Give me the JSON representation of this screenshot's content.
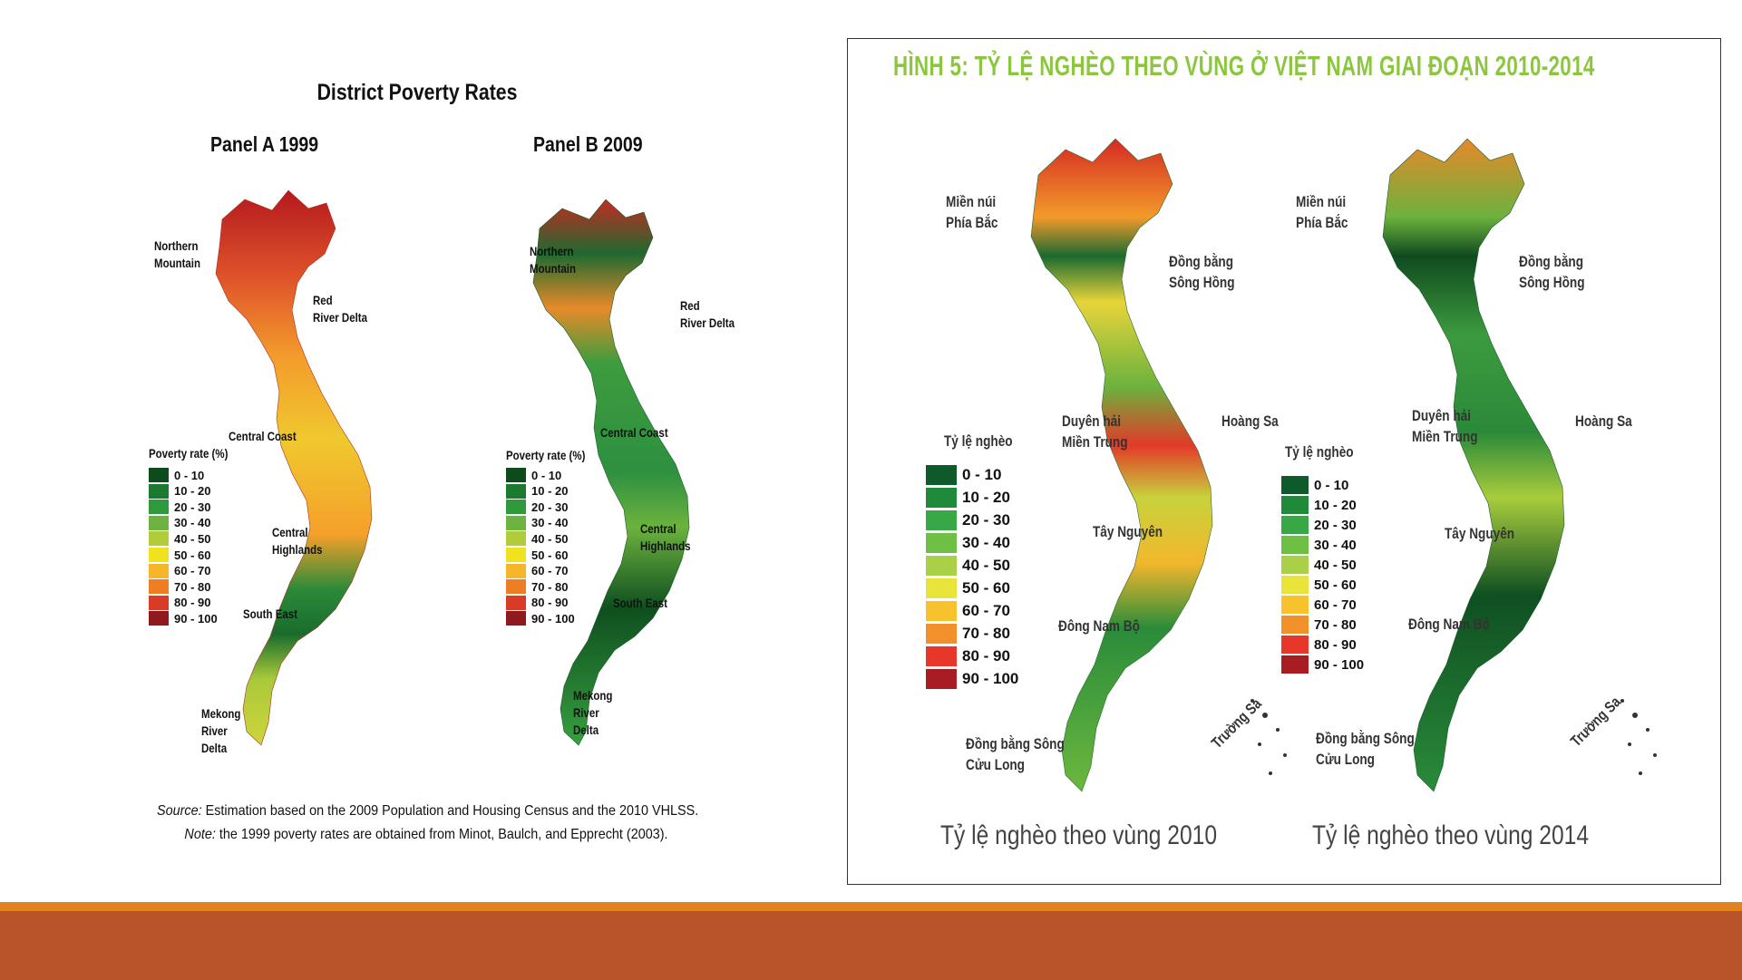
{
  "left_figure": {
    "title": "District Poverty Rates",
    "panel_a": {
      "title": "Panel A 1999",
      "labels": [
        "Northern\nMountain",
        "Red\nRiver Delta",
        "Central Coast",
        "Central\nHighlands",
        "South East",
        "Mekong\nRiver\nDelta"
      ]
    },
    "panel_b": {
      "title": "Panel B 2009",
      "labels": [
        "Northern\nMountain",
        "Red\nRiver Delta",
        "Central Coast",
        "Central\nHighlands",
        "South East",
        "Mekong\nRiver\nDelta"
      ]
    },
    "legend_title": "Poverty rate (%)",
    "legend": [
      "0 - 10",
      "10 - 20",
      "20 - 30",
      "30 - 40",
      "40 - 50",
      "50 - 60",
      "60 - 70",
      "70 - 80",
      "80 - 90",
      "90 - 100"
    ],
    "legend_colors": [
      "#0d4a1c",
      "#1a7a30",
      "#2e9a3c",
      "#6db33f",
      "#b0cc3a",
      "#f0e21e",
      "#f7b52a",
      "#ef7d24",
      "#d93b26",
      "#8f1a1e"
    ],
    "source_label": "Source:",
    "source_text": " Estimation based on the 2009 Population and Housing Census and the 2010 VHLSS.",
    "note_label": "Note:",
    "note_text": "  the 1999 poverty rates are obtained from Minot, Baulch, and Epprecht (2003)."
  },
  "right_figure": {
    "heading": "HÌNH 5: TỶ LỆ NGHÈO THEO VÙNG Ở VIỆT NAM GIAI ĐOẠN 2010-2014",
    "map_2010": {
      "labels": [
        "Miền núi\nPhía Bắc",
        "Đồng bằng\nSông Hồng",
        "Duyên hải\nMiền Trung",
        "Hoàng Sa",
        "Tây Nguyên",
        "Đông Nam Bộ",
        "Đồng bằng Sông\nCửu Long",
        "Trường Sa"
      ],
      "legend_title": "Tỷ lệ nghèo",
      "caption": "Tỷ lệ nghèo theo vùng 2010"
    },
    "map_2014": {
      "labels": [
        "Miền núi\nPhía Bắc",
        "Đồng bằng\nSông Hồng",
        "Duyên hải\nMiền Trung",
        "Hoàng Sa",
        "Tây Nguyên",
        "Đông Nam Bộ",
        "Đồng bằng Sông\nCửu Long",
        "Trường Sa"
      ],
      "legend_title": "Tỷ lệ nghèo",
      "caption": "Tỷ lệ nghèo theo vùng 2014"
    },
    "legend": [
      "0 - 10",
      "10 - 20",
      "20 - 30",
      "30 - 40",
      "40 - 50",
      "50 - 60",
      "60 - 70",
      "70 - 80",
      "80 - 90",
      "90 - 100"
    ],
    "legend_colors": [
      "#0e5a2a",
      "#1e8a3a",
      "#37a845",
      "#6fbf44",
      "#a9d046",
      "#e8e43a",
      "#f7c22b",
      "#f29129",
      "#e6372a",
      "#a81d22"
    ]
  },
  "colors": {
    "bar_top": "#e2821f",
    "bar_main": "#b9542a",
    "heading_green": "#8cc63f"
  }
}
